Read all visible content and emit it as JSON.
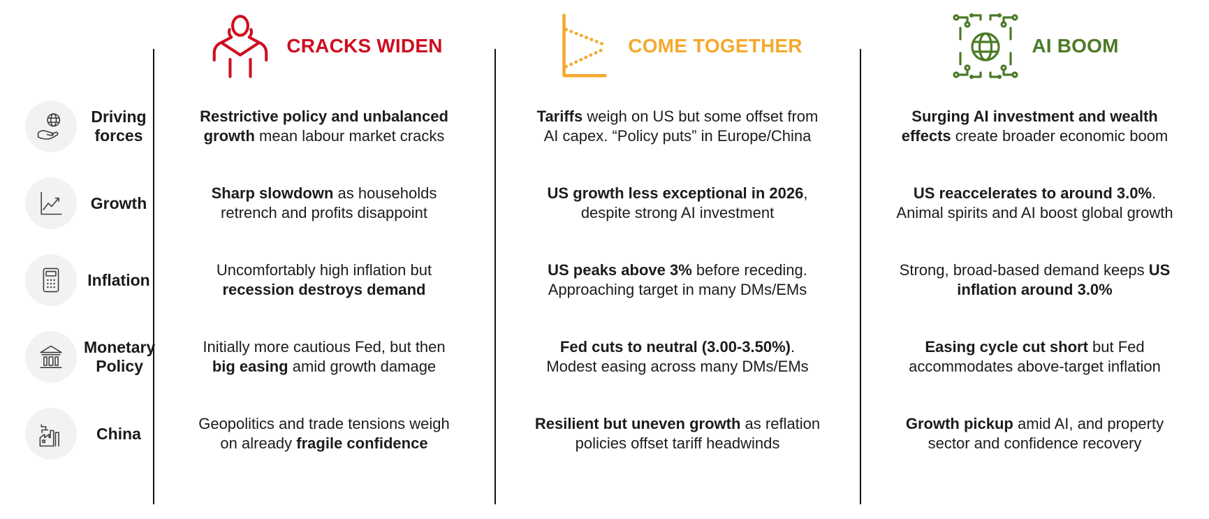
{
  "scenarios": [
    {
      "id": "cracks-widen",
      "title": "CRACKS WIDEN",
      "color": "#CE0E20",
      "icon": "stressed-person-icon"
    },
    {
      "id": "come-together",
      "title": "COME TOGETHER",
      "color": "#F5A92E",
      "icon": "converging-lines-chart-icon"
    },
    {
      "id": "ai-boom",
      "title": "AI BOOM",
      "color": "#4C7A27",
      "icon": "ai-circuit-globe-icon"
    }
  ],
  "colors": {
    "divider": "#141414",
    "row_icon_bg": "#f2f2f2",
    "row_icon_stroke": "#3d3d3d",
    "text": "#1c1c1c"
  },
  "rows": [
    {
      "id": "driving-forces",
      "label": "Driving\nforces",
      "icon": "globe-in-hand-icon",
      "cells": [
        {
          "lines": [
            [
              {
                "t": "Restrictive policy and unbalanced",
                "b": 1
              }
            ],
            [
              {
                "t": "growth",
                "b": 1
              },
              {
                "t": " mean labour market cracks",
                "b": 0
              }
            ]
          ]
        },
        {
          "lines": [
            [
              {
                "t": "Tariffs",
                "b": 1
              },
              {
                "t": " weigh on US but some offset from",
                "b": 0
              }
            ],
            [
              {
                "t": "AI capex. “Policy puts” in Europe/China",
                "b": 0
              }
            ]
          ]
        },
        {
          "lines": [
            [
              {
                "t": "Surging AI investment and wealth",
                "b": 1
              }
            ],
            [
              {
                "t": "effects",
                "b": 1
              },
              {
                "t": " create broader economic boom",
                "b": 0
              }
            ]
          ]
        }
      ]
    },
    {
      "id": "growth",
      "label": "Growth",
      "icon": "line-chart-up-icon",
      "cells": [
        {
          "lines": [
            [
              {
                "t": "Sharp slowdown",
                "b": 1
              },
              {
                "t": " as households",
                "b": 0
              }
            ],
            [
              {
                "t": "retrench and profits disappoint",
                "b": 0
              }
            ]
          ]
        },
        {
          "lines": [
            [
              {
                "t": "US growth less exceptional in 2026",
                "b": 1
              },
              {
                "t": ",",
                "b": 0
              }
            ],
            [
              {
                "t": "despite strong AI investment",
                "b": 0
              }
            ]
          ]
        },
        {
          "lines": [
            [
              {
                "t": "US reaccelerates to around 3.0%",
                "b": 1
              },
              {
                "t": ".",
                "b": 0
              }
            ],
            [
              {
                "t": "Animal spirits and AI boost global growth",
                "b": 0
              }
            ]
          ]
        }
      ]
    },
    {
      "id": "inflation",
      "label": "Inflation",
      "icon": "calculator-icon",
      "cells": [
        {
          "lines": [
            [
              {
                "t": "Uncomfortably high inflation but",
                "b": 0
              }
            ],
            [
              {
                "t": "recession destroys demand",
                "b": 1
              }
            ]
          ]
        },
        {
          "lines": [
            [
              {
                "t": "US peaks above 3%",
                "b": 1
              },
              {
                "t": " before receding.",
                "b": 0
              }
            ],
            [
              {
                "t": "Approaching target in many DMs/EMs",
                "b": 0
              }
            ]
          ]
        },
        {
          "lines": [
            [
              {
                "t": "Strong, broad-based demand keeps ",
                "b": 0
              },
              {
                "t": "US",
                "b": 1
              }
            ],
            [
              {
                "t": "inflation around 3.0%",
                "b": 1
              }
            ]
          ]
        }
      ]
    },
    {
      "id": "monetary-policy",
      "label": "Monetary\nPolicy",
      "icon": "bank-icon",
      "cells": [
        {
          "lines": [
            [
              {
                "t": "Initially more cautious Fed, but then",
                "b": 0
              }
            ],
            [
              {
                "t": "big easing",
                "b": 1
              },
              {
                "t": " amid growth damage",
                "b": 0
              }
            ]
          ]
        },
        {
          "lines": [
            [
              {
                "t": "Fed cuts to neutral (3.00-3.50%)",
                "b": 1
              },
              {
                "t": ".",
                "b": 0
              }
            ],
            [
              {
                "t": "Modest easing across many DMs/EMs",
                "b": 0
              }
            ]
          ]
        },
        {
          "lines": [
            [
              {
                "t": "Easing cycle cut short",
                "b": 1
              },
              {
                "t": " but Fed",
                "b": 0
              }
            ],
            [
              {
                "t": "accommodates above-target inflation",
                "b": 0
              }
            ]
          ]
        }
      ]
    },
    {
      "id": "china",
      "label": "China",
      "icon": "factory-icon",
      "cells": [
        {
          "lines": [
            [
              {
                "t": "Geopolitics and trade tensions weigh",
                "b": 0
              }
            ],
            [
              {
                "t": "on already ",
                "b": 0
              },
              {
                "t": "fragile confidence",
                "b": 1
              }
            ]
          ]
        },
        {
          "lines": [
            [
              {
                "t": "Resilient but uneven growth",
                "b": 1
              },
              {
                "t": " as reflation",
                "b": 0
              }
            ],
            [
              {
                "t": "policies offset tariff headwinds",
                "b": 0
              }
            ]
          ]
        },
        {
          "lines": [
            [
              {
                "t": "Growth pickup",
                "b": 1
              },
              {
                "t": " amid AI, and property",
                "b": 0
              }
            ],
            [
              {
                "t": "sector and confidence recovery",
                "b": 0
              }
            ]
          ]
        }
      ]
    }
  ]
}
